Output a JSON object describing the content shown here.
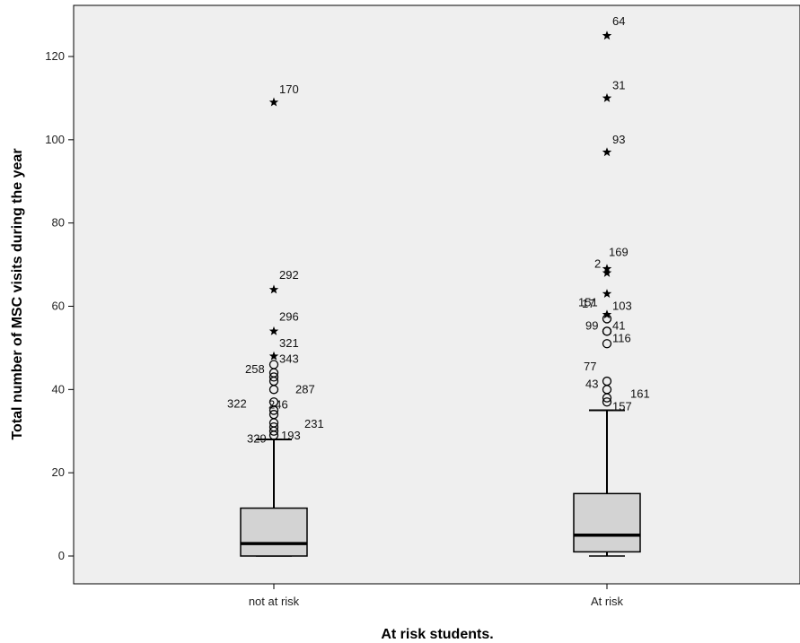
{
  "chart_data": {
    "type": "boxplot",
    "xlabel": "At risk students.",
    "ylabel": "Total number of MSC visits during the year",
    "ylim": [
      -7,
      130
    ],
    "yticks": [
      0,
      20,
      40,
      60,
      80,
      100,
      120
    ],
    "yticklabels": [
      "0",
      "20",
      "40",
      "60",
      "80",
      "100",
      "120"
    ],
    "grid": false,
    "colors": {
      "background": "#efefef",
      "box": "#d3d3d3",
      "stroke": "#000000"
    },
    "categories": [
      "not at risk",
      "At risk"
    ],
    "boxes": [
      {
        "category": "not at risk",
        "min": 0,
        "q1": 0,
        "median": 3,
        "q3": 11.5,
        "whisker_high": 28,
        "outliers": [
          {
            "y": 29,
            "symbol": "circle",
            "label": "329"
          },
          {
            "y": 30,
            "symbol": "circle",
            "label": "193"
          },
          {
            "y": 31,
            "symbol": "circle",
            "label": "231"
          },
          {
            "y": 32,
            "symbol": "circle",
            "label": ""
          },
          {
            "y": 34,
            "symbol": "circle",
            "label": ""
          },
          {
            "y": 35,
            "symbol": "circle",
            "label": "246"
          },
          {
            "y": 37,
            "symbol": "circle",
            "label": "322"
          },
          {
            "y": 40,
            "symbol": "circle",
            "label": "287"
          },
          {
            "y": 42,
            "symbol": "circle",
            "label": ""
          },
          {
            "y": 43,
            "symbol": "circle",
            "label": ""
          },
          {
            "y": 44,
            "symbol": "circle",
            "label": "258"
          },
          {
            "y": 46,
            "symbol": "circle",
            "label": "343"
          },
          {
            "y": 48,
            "symbol": "star",
            "label": "321"
          },
          {
            "y": 54,
            "symbol": "star",
            "label": "296"
          },
          {
            "y": 64,
            "symbol": "star",
            "label": "292"
          },
          {
            "y": 109,
            "symbol": "star",
            "label": "170"
          }
        ]
      },
      {
        "category": "At risk",
        "min": 0,
        "q1": 1,
        "median": 5,
        "q3": 15,
        "whisker_high": 35,
        "outliers": [
          {
            "y": 37,
            "symbol": "circle",
            "label": "157"
          },
          {
            "y": 38,
            "symbol": "circle",
            "label": "161"
          },
          {
            "y": 40,
            "symbol": "circle",
            "label": "43"
          },
          {
            "y": 42,
            "symbol": "circle",
            "label": "77"
          },
          {
            "y": 51,
            "symbol": "circle",
            "label": "116"
          },
          {
            "y": 54,
            "symbol": "circle",
            "label": "41"
          },
          {
            "y": 54,
            "symbol": "circle",
            "label": "99"
          },
          {
            "y": 57,
            "symbol": "circle",
            "label": "103"
          },
          {
            "y": 58,
            "symbol": "star",
            "label": "17"
          },
          {
            "y": 63,
            "symbol": "star",
            "label": "151"
          },
          {
            "y": 68,
            "symbol": "star",
            "label": "2"
          },
          {
            "y": 69,
            "symbol": "star",
            "label": "169"
          },
          {
            "y": 97,
            "symbol": "star",
            "label": "93"
          },
          {
            "y": 110,
            "symbol": "star",
            "label": "31"
          },
          {
            "y": 125,
            "symbol": "star",
            "label": "64"
          }
        ]
      }
    ]
  }
}
